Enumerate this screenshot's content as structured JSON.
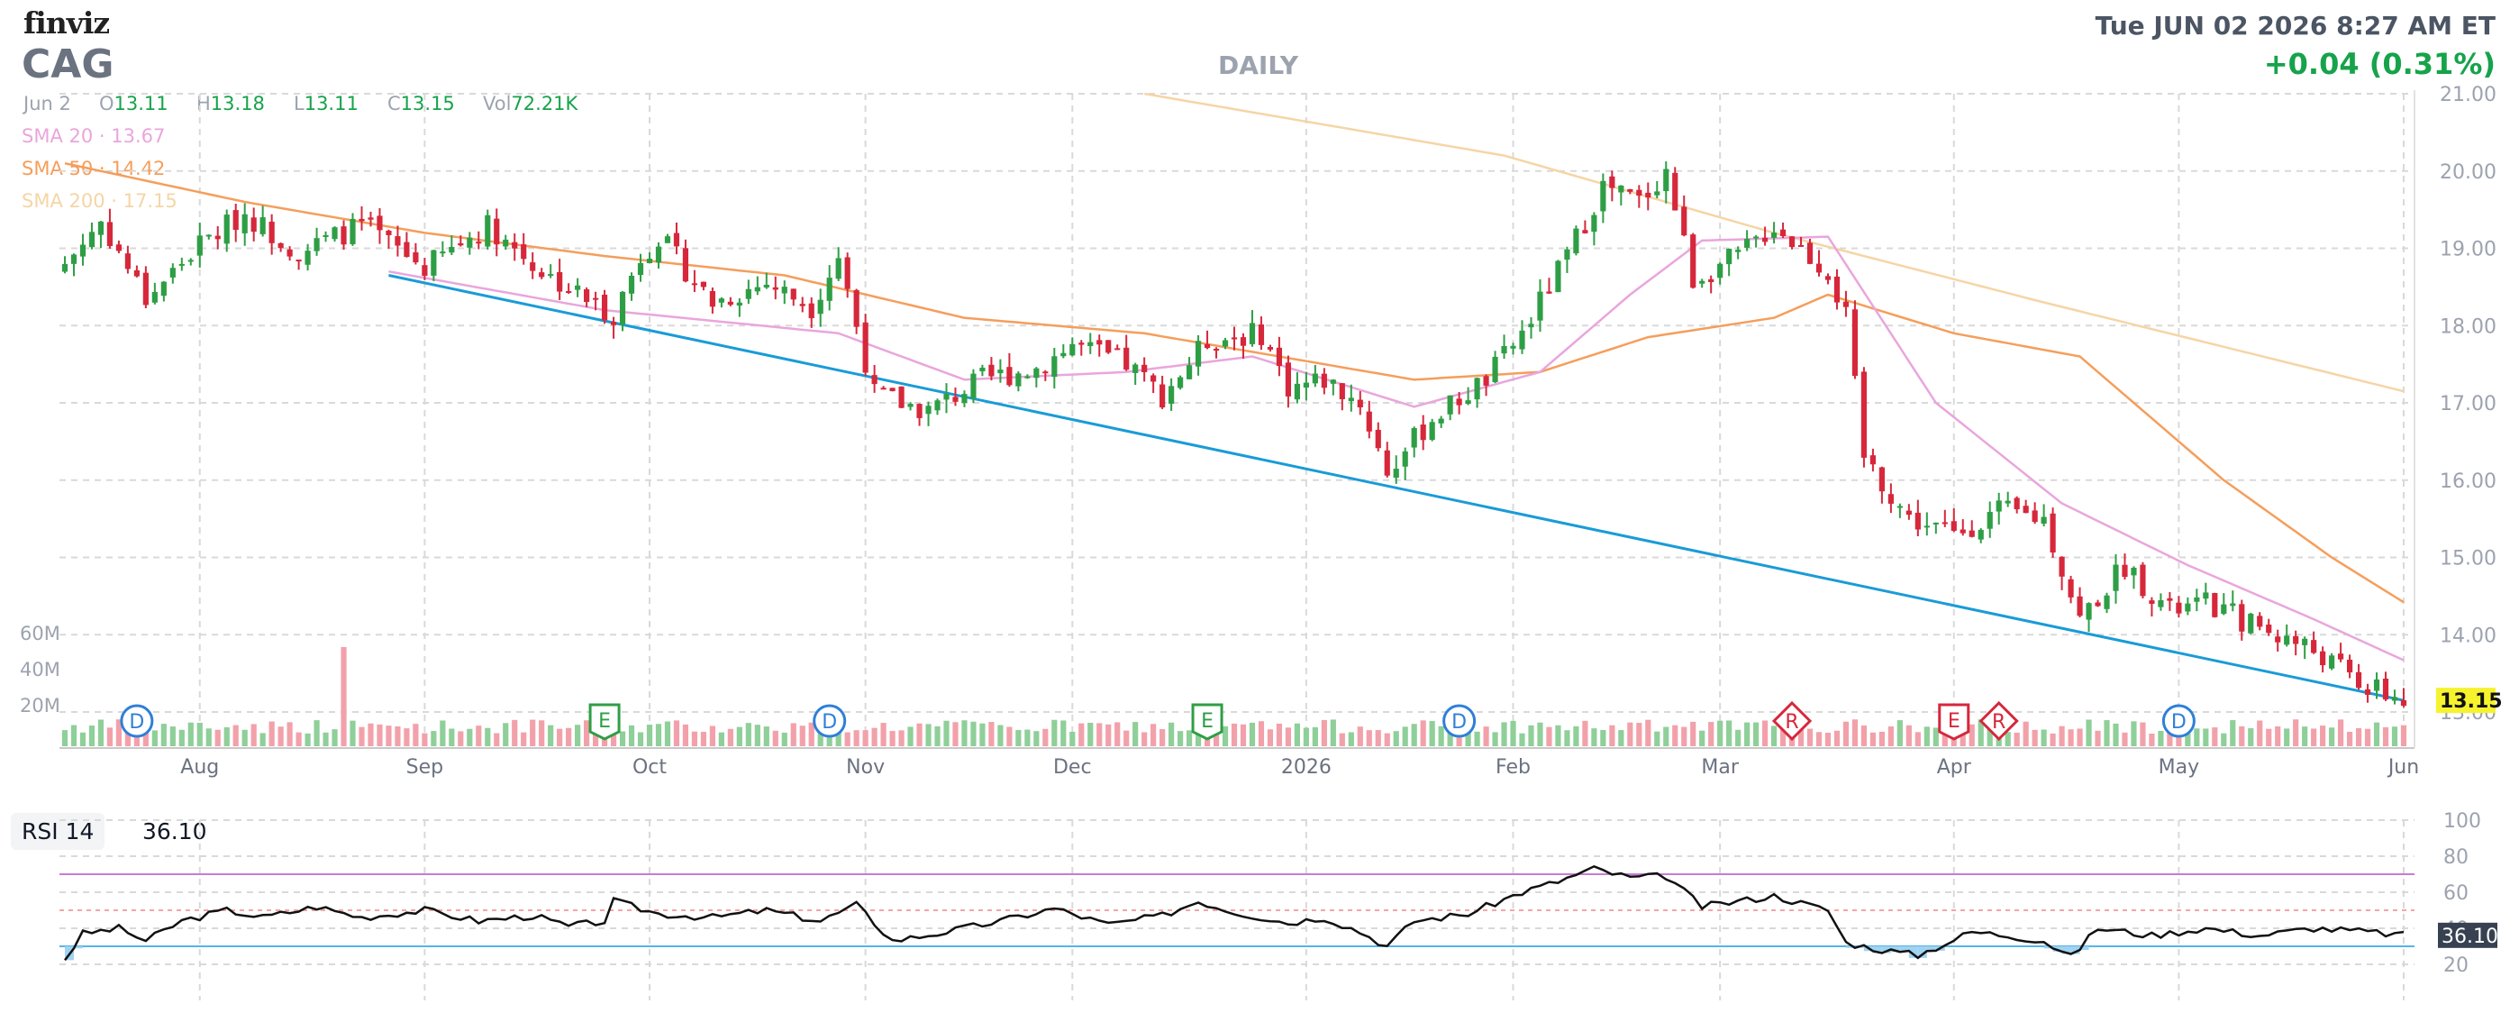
{
  "header": {
    "logo": "finviz",
    "ticker": "CAG",
    "interval": "DAILY",
    "datetime": "Tue JUN 02 2026 8:27 AM ET",
    "change": "+0.04 (0.31%)"
  },
  "ohlc": {
    "date": "Jun 2",
    "open_key": "O",
    "open": "13.11",
    "high_key": "H",
    "high": "13.18",
    "low_key": "L",
    "low": "13.11",
    "close_key": "C",
    "close": "13.15",
    "vol_key": "Vol",
    "vol": "72.21K"
  },
  "sma": [
    {
      "label": "SMA 20",
      "value": "13.67",
      "color": "#e9a6dc"
    },
    {
      "label": "SMA 50",
      "value": "14.42",
      "color": "#f59e5b"
    },
    {
      "label": "SMA 200",
      "value": "17.15",
      "color": "#f5d5a6"
    }
  ],
  "colors": {
    "up": "#2e9e45",
    "down": "#d6273b",
    "vol_up": "#8fcf99",
    "vol_down": "#f2a1aa",
    "trendline": "#1a9bd7",
    "grid": "#d9d9d9",
    "price_badge": "#f6f22e",
    "rsi_line": "#111111",
    "rsi_upper": "#c77bd6",
    "rsi_lower": "#57b3e8",
    "rsi_mid": "#f3a5a5"
  },
  "rsi": {
    "label": "RSI 14",
    "value": "36.10"
  },
  "chart_data": {
    "type": "candlestick",
    "y_ticks": [
      "21.00",
      "20.00",
      "19.00",
      "18.00",
      "17.00",
      "16.00",
      "15.00",
      "14.00",
      "13.00"
    ],
    "ylim": [
      13,
      21
    ],
    "month_labels": [
      "Aug",
      "Sep",
      "Oct",
      "Nov",
      "Dec",
      "2026",
      "Feb",
      "Mar",
      "Apr",
      "May",
      "Jun"
    ],
    "month_positions": [
      15,
      40,
      65,
      89,
      112,
      138,
      161,
      184,
      210,
      235,
      260
    ],
    "volume_ticks": [
      "60M",
      "40M",
      "20M"
    ],
    "last_price": "13.15",
    "price_anchors": [
      [
        0,
        18.8
      ],
      [
        4,
        19.35
      ],
      [
        9,
        18.35
      ],
      [
        15,
        19.05
      ],
      [
        20,
        19.45
      ],
      [
        26,
        18.95
      ],
      [
        33,
        19.3
      ],
      [
        40,
        18.75
      ],
      [
        47,
        19.3
      ],
      [
        53,
        18.7
      ],
      [
        60,
        18.2
      ],
      [
        61,
        18.15
      ],
      [
        64,
        18.9
      ],
      [
        66,
        19.15
      ],
      [
        72,
        18.3
      ],
      [
        78,
        18.55
      ],
      [
        83,
        18.25
      ],
      [
        86,
        18.9
      ],
      [
        90,
        17.1
      ],
      [
        96,
        16.9
      ],
      [
        102,
        17.3
      ],
      [
        108,
        17.45
      ],
      [
        112,
        17.75
      ],
      [
        118,
        17.5
      ],
      [
        122,
        17.1
      ],
      [
        127,
        17.8
      ],
      [
        133,
        17.9
      ],
      [
        136,
        17.2
      ],
      [
        140,
        17.3
      ],
      [
        144,
        17.0
      ],
      [
        147,
        16.1
      ],
      [
        152,
        16.8
      ],
      [
        158,
        17.3
      ],
      [
        162,
        17.9
      ],
      [
        167,
        18.9
      ],
      [
        171,
        19.8
      ],
      [
        175,
        19.6
      ],
      [
        178,
        20.0
      ],
      [
        181,
        18.6
      ],
      [
        186,
        18.9
      ],
      [
        190,
        19.3
      ],
      [
        196,
        18.7
      ],
      [
        198,
        18.1
      ],
      [
        200,
        16.3
      ],
      [
        205,
        15.5
      ],
      [
        210,
        15.3
      ],
      [
        215,
        15.6
      ],
      [
        220,
        15.5
      ],
      [
        224,
        14.2
      ],
      [
        229,
        14.9
      ],
      [
        234,
        14.3
      ],
      [
        238,
        14.4
      ],
      [
        244,
        14.1
      ],
      [
        250,
        13.8
      ],
      [
        256,
        13.3
      ],
      [
        260,
        13.15
      ]
    ],
    "sma20_anchors": [
      [
        36,
        18.7
      ],
      [
        60,
        18.2
      ],
      [
        86,
        17.9
      ],
      [
        100,
        17.3
      ],
      [
        118,
        17.4
      ],
      [
        132,
        17.6
      ],
      [
        150,
        16.95
      ],
      [
        164,
        17.4
      ],
      [
        174,
        18.4
      ],
      [
        182,
        19.1
      ],
      [
        196,
        19.15
      ],
      [
        208,
        17.0
      ],
      [
        222,
        15.7
      ],
      [
        236,
        14.9
      ],
      [
        250,
        14.2
      ],
      [
        260,
        13.67
      ]
    ],
    "sma50_anchors": [
      [
        0,
        20.1
      ],
      [
        20,
        19.6
      ],
      [
        40,
        19.2
      ],
      [
        60,
        18.9
      ],
      [
        80,
        18.65
      ],
      [
        100,
        18.1
      ],
      [
        120,
        17.9
      ],
      [
        150,
        17.3
      ],
      [
        164,
        17.4
      ],
      [
        176,
        17.85
      ],
      [
        190,
        18.1
      ],
      [
        196,
        18.4
      ],
      [
        210,
        17.9
      ],
      [
        224,
        17.6
      ],
      [
        240,
        16.0
      ],
      [
        252,
        15.0
      ],
      [
        260,
        14.42
      ]
    ],
    "sma200_anchors": [
      [
        120,
        21.0
      ],
      [
        160,
        20.2
      ],
      [
        190,
        19.2
      ],
      [
        220,
        18.3
      ],
      [
        260,
        17.15
      ]
    ],
    "trendline": {
      "start": [
        36,
        18.65
      ],
      "end": [
        260,
        13.15
      ]
    },
    "events": [
      {
        "type": "D",
        "x": 8
      },
      {
        "type": "E",
        "x": 60
      },
      {
        "type": "D",
        "x": 85
      },
      {
        "type": "E",
        "x": 127
      },
      {
        "type": "D",
        "x": 155
      },
      {
        "type": "R",
        "x": 192
      },
      {
        "type": "E",
        "x": 210
      },
      {
        "type": "R",
        "x": 215
      },
      {
        "type": "D",
        "x": 235
      }
    ],
    "volume_spike_index": 31,
    "rsi_ticks": [
      "100",
      "80",
      "60",
      "40",
      "20"
    ],
    "rsi_lines": {
      "upper": 70,
      "mid": 50,
      "lower": 30
    },
    "rsi_anchors": [
      [
        0,
        23
      ],
      [
        2,
        37
      ],
      [
        6,
        40
      ],
      [
        9,
        33
      ],
      [
        13,
        44
      ],
      [
        18,
        50
      ],
      [
        22,
        46
      ],
      [
        28,
        52
      ],
      [
        33,
        46
      ],
      [
        40,
        50
      ],
      [
        46,
        44
      ],
      [
        52,
        47
      ],
      [
        56,
        41
      ],
      [
        60,
        44
      ],
      [
        61,
        55
      ],
      [
        66,
        48
      ],
      [
        72,
        46
      ],
      [
        78,
        50
      ],
      [
        84,
        44
      ],
      [
        88,
        53
      ],
      [
        92,
        33
      ],
      [
        98,
        38
      ],
      [
        104,
        44
      ],
      [
        110,
        51
      ],
      [
        116,
        42
      ],
      [
        122,
        47
      ],
      [
        126,
        55
      ],
      [
        130,
        49
      ],
      [
        136,
        43
      ],
      [
        140,
        46
      ],
      [
        144,
        38
      ],
      [
        147,
        30
      ],
      [
        150,
        44
      ],
      [
        156,
        48
      ],
      [
        162,
        60
      ],
      [
        166,
        66
      ],
      [
        170,
        73
      ],
      [
        174,
        68
      ],
      [
        178,
        69
      ],
      [
        182,
        52
      ],
      [
        186,
        55
      ],
      [
        190,
        58
      ],
      [
        196,
        50
      ],
      [
        198,
        32
      ],
      [
        202,
        28
      ],
      [
        206,
        25
      ],
      [
        212,
        38
      ],
      [
        216,
        36
      ],
      [
        220,
        33
      ],
      [
        223,
        24
      ],
      [
        226,
        40
      ],
      [
        232,
        36
      ],
      [
        238,
        40
      ],
      [
        244,
        36
      ],
      [
        250,
        40
      ],
      [
        256,
        38
      ],
      [
        260,
        36.1
      ]
    ]
  }
}
